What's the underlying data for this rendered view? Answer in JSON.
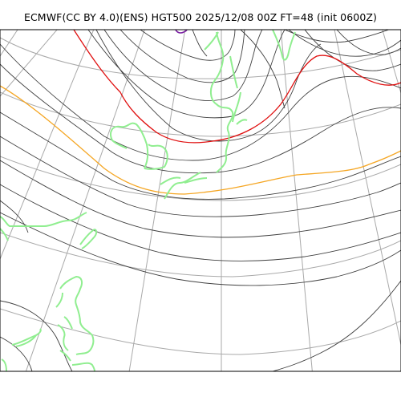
{
  "title": "ECMWF(CC BY 4.0)(ENS) HGT500 2025/12/08 00Z FT=48 (init 0600Z)",
  "colors": {
    "contour": "#404040",
    "contour_5400": "#f5a623",
    "contour_5700": "#e01010",
    "coastline": "#90ee90",
    "graticule": "#a9a9a9",
    "low_marker": "#7a1fa2",
    "frame": "#000000"
  },
  "legend": []
}
